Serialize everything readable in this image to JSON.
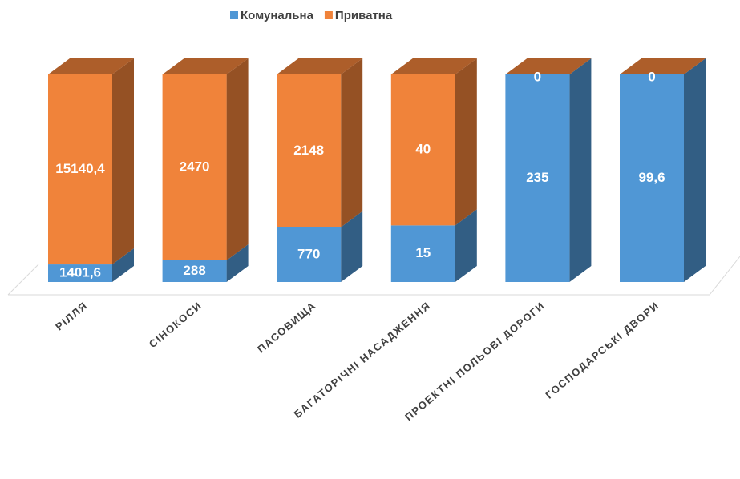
{
  "chart_data": {
    "type": "bar",
    "stacking": "percent",
    "categories": [
      "РІЛЛЯ",
      "СІНОКОСИ",
      "ПАСОВИЩА",
      "БАГАТОРІЧНІ НАСАДЖЕННЯ",
      "ПРОЕКТНІ ПОЛЬОВІ ДОРОГИ",
      "ГОСПОДАРСЬКІ ДВОРИ"
    ],
    "series": [
      {
        "name": "Комунальна",
        "color": "#5097d5",
        "values": [
          1401.6,
          288,
          770,
          15,
          235,
          99.6
        ],
        "value_labels": [
          "1401,6",
          "288",
          "770",
          "15",
          "235",
          "99,6"
        ]
      },
      {
        "name": "Приватна",
        "color": "#f0833a",
        "values": [
          15140.4,
          2470,
          2148,
          40,
          0,
          0
        ],
        "value_labels": [
          "15140,4",
          "2470",
          "2148",
          "40",
          "0",
          "0"
        ]
      }
    ],
    "legend": "top"
  }
}
